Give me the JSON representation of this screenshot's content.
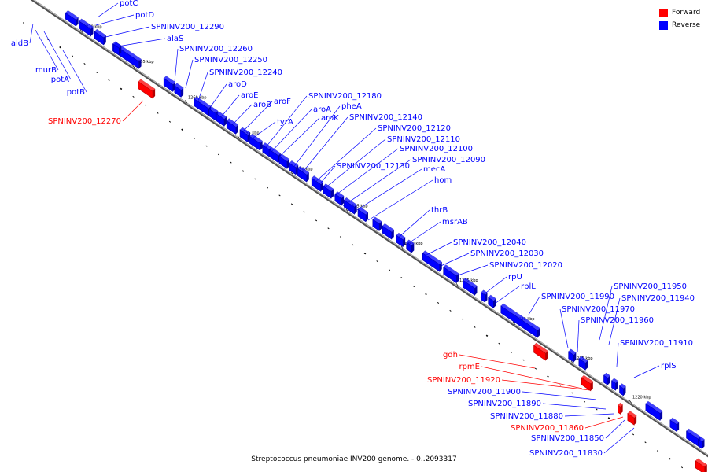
{
  "caption": "Streptococcus pneumoniae INV200 genome. - 0..2093317",
  "legend": [
    {
      "label": "Forward",
      "color": "#ff0000"
    },
    {
      "label": "Reverse",
      "color": "#0000ff"
    }
  ],
  "colors": {
    "forward": "#ff0000",
    "reverse": "#0000ff",
    "forward_dark": "#b30000",
    "reverse_dark": "#0000a8",
    "backbone": "#7a7a7a"
  },
  "ticks": [
    "1270 kbp",
    "1265 kbp",
    "1260 kbp",
    "1255 kbp",
    "1250 kbp",
    "1245 kbp",
    "1240 kbp",
    "1235 kbp",
    "1230 kbp",
    "1225 kbp",
    "1220 kbp"
  ],
  "genes": [
    {
      "label": "aldB",
      "strand": "reverse"
    },
    {
      "label": "murB",
      "strand": "reverse"
    },
    {
      "label": "potA",
      "strand": "reverse"
    },
    {
      "label": "potB",
      "strand": "reverse"
    },
    {
      "label": "potC",
      "strand": "reverse"
    },
    {
      "label": "potD",
      "strand": "reverse"
    },
    {
      "label": "SPNINV200_12290",
      "strand": "reverse"
    },
    {
      "label": "alaS",
      "strand": "reverse"
    },
    {
      "label": "SPNINV200_12270",
      "strand": "forward"
    },
    {
      "label": "SPNINV200_12260",
      "strand": "reverse"
    },
    {
      "label": "SPNINV200_12250",
      "strand": "reverse"
    },
    {
      "label": "SPNINV200_12240",
      "strand": "reverse"
    },
    {
      "label": "aroD",
      "strand": "reverse"
    },
    {
      "label": "aroE",
      "strand": "reverse"
    },
    {
      "label": "aroB",
      "strand": "reverse"
    },
    {
      "label": "aroF",
      "strand": "reverse"
    },
    {
      "label": "tyrA",
      "strand": "reverse"
    },
    {
      "label": "SPNINV200_12180",
      "strand": "reverse"
    },
    {
      "label": "aroA",
      "strand": "reverse"
    },
    {
      "label": "aroK",
      "strand": "reverse"
    },
    {
      "label": "pheA",
      "strand": "reverse"
    },
    {
      "label": "SPNINV200_12140",
      "strand": "reverse"
    },
    {
      "label": "SPNINV200_12120",
      "strand": "reverse"
    },
    {
      "label": "SPNINV200_12110",
      "strand": "reverse"
    },
    {
      "label": "SPNINV200_12100",
      "strand": "reverse"
    },
    {
      "label": "SPNINV200_12130",
      "strand": "reverse"
    },
    {
      "label": "SPNINV200_12090",
      "strand": "reverse"
    },
    {
      "label": "mecA",
      "strand": "reverse"
    },
    {
      "label": "hom",
      "strand": "reverse"
    },
    {
      "label": "thrB",
      "strand": "reverse"
    },
    {
      "label": "msrAB",
      "strand": "reverse"
    },
    {
      "label": "SPNINV200_12040",
      "strand": "reverse"
    },
    {
      "label": "SPNINV200_12030",
      "strand": "reverse"
    },
    {
      "label": "SPNINV200_12020",
      "strand": "reverse"
    },
    {
      "label": "rpU",
      "strand": "reverse"
    },
    {
      "label": "rplL",
      "strand": "reverse"
    },
    {
      "label": "SPNINV200_11990",
      "strand": "reverse"
    },
    {
      "label": "SPNINV200_11970",
      "strand": "reverse"
    },
    {
      "label": "SPNINV200_11960",
      "strand": "reverse"
    },
    {
      "label": "SPNINV200_11950",
      "strand": "reverse"
    },
    {
      "label": "SPNINV200_11940",
      "strand": "reverse"
    },
    {
      "label": "SPNINV200_11910",
      "strand": "reverse"
    },
    {
      "label": "rplS",
      "strand": "reverse"
    },
    {
      "label": "gdh",
      "strand": "forward"
    },
    {
      "label": "rpmE",
      "strand": "forward"
    },
    {
      "label": "SPNINV200_11920",
      "strand": "forward"
    },
    {
      "label": "SPNINV200_11900",
      "strand": "reverse"
    },
    {
      "label": "SPNINV200_11890",
      "strand": "reverse"
    },
    {
      "label": "SPNINV200_11880",
      "strand": "reverse"
    },
    {
      "label": "SPNINV200_11860",
      "strand": "forward"
    },
    {
      "label": "SPNINV200_11850",
      "strand": "reverse"
    },
    {
      "label": "SPNINV200_11830",
      "strand": "reverse"
    }
  ]
}
